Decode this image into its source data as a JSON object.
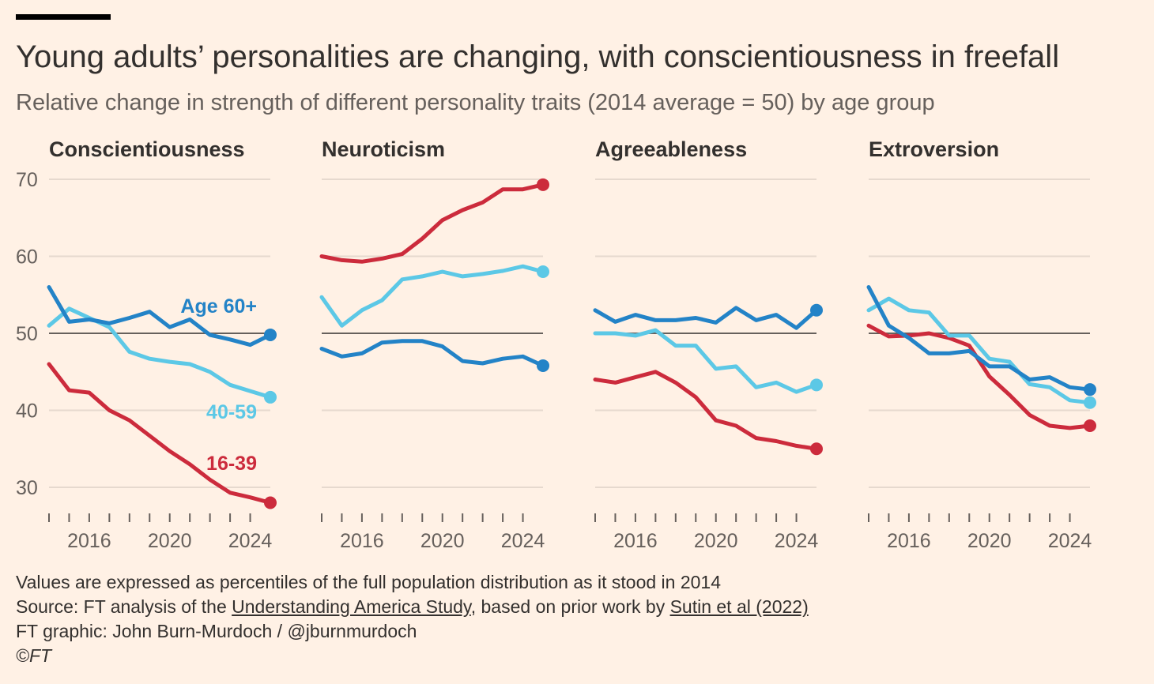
{
  "title": "Young adults’ personalities are changing, with conscientiousness in freefall",
  "subtitle": "Relative change in strength of different personality traits (2014 average = 50) by age group",
  "colors": {
    "age_16_39": "#CC2B3C",
    "age_40_59": "#5CC8E6",
    "age_60_plus": "#2383C7",
    "reference_line": "#66605C",
    "grid": "#E6D9CE",
    "background": "#FFF1E5"
  },
  "series_labels": {
    "age_60_plus": "Age 60+",
    "age_40_59": "40-59",
    "age_16_39": "16-39"
  },
  "chart_data": [
    {
      "type": "line",
      "title": "Conscientiousness",
      "x": [
        2014,
        2015,
        2016,
        2017,
        2018,
        2019,
        2020,
        2021,
        2022,
        2023,
        2024,
        2025
      ],
      "ylim": [
        25,
        70
      ],
      "yticks": [
        30,
        40,
        50,
        60,
        70
      ],
      "xticks": [
        2016,
        2020,
        2024
      ],
      "reference_line": 50,
      "series": [
        {
          "name": "Age 60+",
          "values": [
            56,
            51.5,
            51.8,
            51.3,
            52,
            52.8,
            50.8,
            51.8,
            49.8,
            49.2,
            48.5,
            49.8
          ]
        },
        {
          "name": "40-59",
          "values": [
            51,
            53.2,
            52,
            50.8,
            47.6,
            46.7,
            46.3,
            46,
            45,
            43.3,
            42.5,
            41.7
          ]
        },
        {
          "name": "16-39",
          "values": [
            46,
            42.6,
            42.3,
            40,
            38.7,
            36.7,
            34.7,
            33,
            31,
            29.3,
            28.7,
            28
          ]
        }
      ]
    },
    {
      "type": "line",
      "title": "Neuroticism",
      "x": [
        2014,
        2015,
        2016,
        2017,
        2018,
        2019,
        2020,
        2021,
        2022,
        2023,
        2024,
        2025
      ],
      "ylim": [
        25,
        70
      ],
      "yticks": [
        30,
        40,
        50,
        60,
        70
      ],
      "xticks": [
        2016,
        2020,
        2024
      ],
      "reference_line": 50,
      "series": [
        {
          "name": "Age 60+",
          "values": [
            48,
            47,
            47.4,
            48.8,
            49,
            49,
            48.3,
            46.4,
            46.1,
            46.7,
            47,
            45.8
          ]
        },
        {
          "name": "40-59",
          "values": [
            54.7,
            51,
            53,
            54.3,
            57,
            57.4,
            58,
            57.4,
            57.7,
            58.1,
            58.7,
            58
          ]
        },
        {
          "name": "16-39",
          "values": [
            60,
            59.5,
            59.3,
            59.7,
            60.3,
            62.3,
            64.7,
            66,
            67,
            68.7,
            68.7,
            69.3
          ]
        }
      ]
    },
    {
      "type": "line",
      "title": "Agreeableness",
      "x": [
        2014,
        2015,
        2016,
        2017,
        2018,
        2019,
        2020,
        2021,
        2022,
        2023,
        2024,
        2025
      ],
      "ylim": [
        25,
        70
      ],
      "yticks": [
        30,
        40,
        50,
        60,
        70
      ],
      "xticks": [
        2016,
        2020,
        2024
      ],
      "reference_line": 50,
      "series": [
        {
          "name": "Age 60+",
          "values": [
            53,
            51.5,
            52.4,
            51.7,
            51.7,
            52,
            51.4,
            53.3,
            51.7,
            52.4,
            50.7,
            53
          ]
        },
        {
          "name": "40-59",
          "values": [
            50,
            50,
            49.7,
            50.4,
            48.4,
            48.4,
            45.4,
            45.7,
            43,
            43.6,
            42.4,
            43.3
          ]
        },
        {
          "name": "16-39",
          "values": [
            44,
            43.6,
            44.3,
            45,
            43.6,
            41.7,
            38.7,
            38,
            36.4,
            36,
            35.4,
            35
          ]
        }
      ]
    },
    {
      "type": "line",
      "title": "Extroversion",
      "x": [
        2014,
        2015,
        2016,
        2017,
        2018,
        2019,
        2020,
        2021,
        2022,
        2023,
        2024,
        2025
      ],
      "ylim": [
        25,
        70
      ],
      "yticks": [
        30,
        40,
        50,
        60,
        70
      ],
      "xticks": [
        2016,
        2020,
        2024
      ],
      "reference_line": 50,
      "series": [
        {
          "name": "Age 60+",
          "values": [
            56,
            51,
            49.4,
            47.4,
            47.4,
            47.7,
            45.7,
            45.7,
            44,
            44.3,
            43,
            42.7
          ]
        },
        {
          "name": "40-59",
          "values": [
            53,
            54.5,
            53,
            52.7,
            49.7,
            49.7,
            46.7,
            46.3,
            43.4,
            43,
            41.3,
            41
          ]
        },
        {
          "name": "16-39",
          "values": [
            51,
            49.6,
            49.7,
            50,
            49.4,
            48.4,
            44.4,
            42,
            39.4,
            38,
            37.7,
            38
          ]
        }
      ]
    }
  ],
  "footer": {
    "note": "Values are expressed as percentiles of the full population distribution as it stood in 2014",
    "source_prefix": "Source: FT analysis of the ",
    "source_link_1": "Understanding America Study",
    "source_middle": ", based on prior work by ",
    "source_link_2": "Sutin et al (2022)",
    "credit": "FT graphic: John Burn-Murdoch / @jburnmurdoch",
    "copyright": "©FT"
  }
}
